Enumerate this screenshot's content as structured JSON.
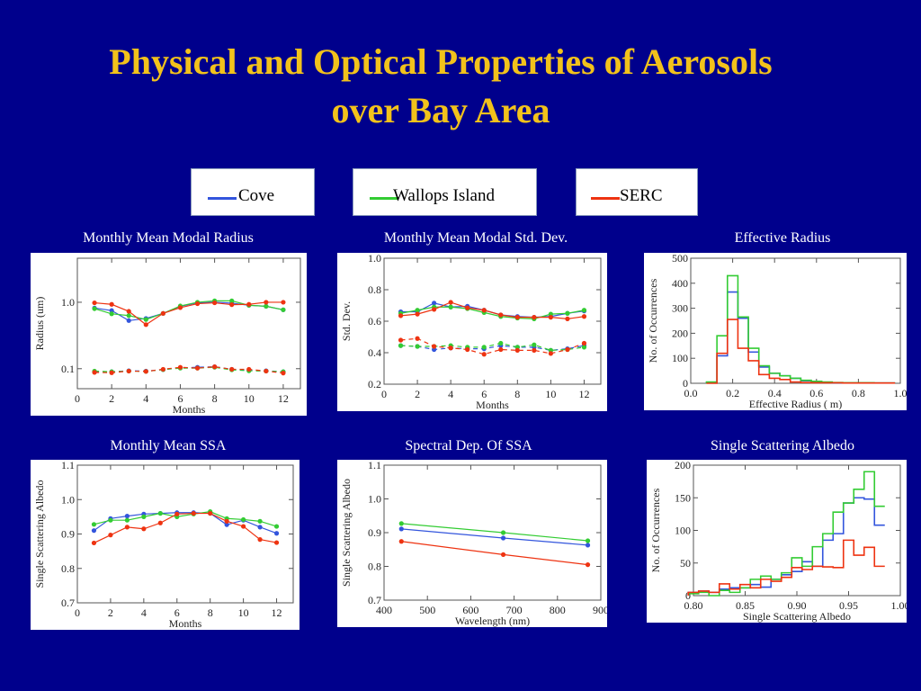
{
  "slide": {
    "title_line1": "Physical and Optical Properties of Aerosols",
    "title_line2": "over Bay Area"
  },
  "legend": [
    {
      "label": "Cove",
      "color": "#3355dd"
    },
    {
      "label": "Wallops Island",
      "color": "#33cc33"
    },
    {
      "label": "SERC",
      "color": "#ee3311"
    }
  ],
  "chart_data": [
    {
      "title": "Monthly Mean Modal Radius",
      "type": "line",
      "xlabel": "Months",
      "ylabel": "Radius (um)",
      "xlim": [
        0,
        13
      ],
      "ylim": [
        0.05,
        4.6
      ],
      "yscale": "log",
      "xticks": [
        0,
        2,
        4,
        6,
        8,
        10,
        12
      ],
      "xtick_labels": [
        "0",
        "2",
        "4",
        "6",
        "8",
        "10",
        "12"
      ],
      "yticks": [
        0.1,
        1.0
      ],
      "ytick_labels": [
        "0.1",
        "1.0"
      ],
      "x": [
        1,
        2,
        3,
        4,
        5,
        6,
        7,
        8,
        9,
        10,
        11,
        12
      ],
      "series": [
        {
          "name": "Cove",
          "style": "solid",
          "values": [
            0.82,
            0.75,
            0.53,
            0.57,
            0.68,
            0.87,
            0.98,
            1.0,
            0.97,
            0.9,
            0.87,
            0.77
          ]
        },
        {
          "name": "Wallops Island",
          "style": "solid",
          "values": [
            0.8,
            0.67,
            0.63,
            0.55,
            0.68,
            0.88,
            1.0,
            1.05,
            1.05,
            0.9,
            0.87,
            0.77
          ]
        },
        {
          "name": "SERC",
          "style": "solid",
          "values": [
            0.98,
            0.93,
            0.73,
            0.46,
            0.68,
            0.83,
            0.95,
            0.98,
            0.92,
            0.93,
            1.0,
            1.0
          ]
        },
        {
          "name": "Cove",
          "style": "dashed",
          "values": [
            0.09,
            0.09,
            0.093,
            0.092,
            0.097,
            0.103,
            0.105,
            0.107,
            0.098,
            0.095,
            0.093,
            0.09
          ]
        },
        {
          "name": "Wallops Island",
          "style": "dashed",
          "values": [
            0.092,
            0.09,
            0.092,
            0.091,
            0.097,
            0.102,
            0.102,
            0.105,
            0.096,
            0.093,
            0.092,
            0.09
          ]
        },
        {
          "name": "SERC",
          "style": "dashed",
          "values": [
            0.088,
            0.087,
            0.092,
            0.091,
            0.098,
            0.105,
            0.102,
            0.107,
            0.098,
            0.098,
            0.092,
            0.086
          ]
        }
      ]
    },
    {
      "title": "Monthly Mean Modal Std. Dev.",
      "type": "line",
      "xlabel": "Months",
      "ylabel": "Std. Dev.",
      "xlim": [
        0,
        13
      ],
      "ylim": [
        0.2,
        1.0
      ],
      "yscale": "linear",
      "xticks": [
        0,
        2,
        4,
        6,
        8,
        10,
        12
      ],
      "xtick_labels": [
        "0",
        "2",
        "4",
        "6",
        "8",
        "10",
        "12"
      ],
      "yticks": [
        0.2,
        0.4,
        0.6,
        0.8,
        1.0
      ],
      "ytick_labels": [
        "0.2",
        "0.4",
        "0.6",
        "0.8",
        "1.0"
      ],
      "x": [
        1,
        2,
        3,
        4,
        5,
        6,
        7,
        8,
        9,
        10,
        11,
        12
      ],
      "series": [
        {
          "name": "Cove",
          "style": "solid",
          "values": [
            0.66,
            0.66,
            0.715,
            0.69,
            0.695,
            0.67,
            0.64,
            0.63,
            0.625,
            0.63,
            0.65,
            0.665
          ]
        },
        {
          "name": "Wallops Island",
          "style": "solid",
          "values": [
            0.65,
            0.67,
            0.69,
            0.69,
            0.68,
            0.655,
            0.63,
            0.62,
            0.615,
            0.645,
            0.65,
            0.67
          ]
        },
        {
          "name": "SERC",
          "style": "solid",
          "values": [
            0.635,
            0.645,
            0.675,
            0.72,
            0.685,
            0.67,
            0.64,
            0.625,
            0.625,
            0.625,
            0.615,
            0.63
          ]
        },
        {
          "name": "Cove",
          "style": "dashed",
          "values": [
            0.445,
            0.44,
            0.42,
            0.43,
            0.425,
            0.425,
            0.445,
            0.435,
            0.435,
            0.415,
            0.425,
            0.445
          ]
        },
        {
          "name": "Wallops Island",
          "style": "dashed",
          "values": [
            0.445,
            0.44,
            0.44,
            0.445,
            0.435,
            0.435,
            0.46,
            0.435,
            0.45,
            0.415,
            0.42,
            0.435
          ]
        },
        {
          "name": "SERC",
          "style": "dashed",
          "values": [
            0.48,
            0.49,
            0.44,
            0.43,
            0.42,
            0.39,
            0.42,
            0.415,
            0.415,
            0.395,
            0.42,
            0.46
          ]
        }
      ]
    },
    {
      "title": "Effective Radius",
      "type": "histogram",
      "xlabel": "Effective Radius (  m)",
      "ylabel": "No. of Occurrences",
      "xlim": [
        0,
        1.0
      ],
      "ylim": [
        0,
        500
      ],
      "yscale": "linear",
      "xticks": [
        0,
        0.2,
        0.4,
        0.6,
        0.8,
        1.0
      ],
      "xtick_labels": [
        "0.0",
        "0.2",
        "0.4",
        "0.6",
        "0.8",
        "1.0"
      ],
      "yticks": [
        0,
        100,
        200,
        300,
        400,
        500
      ],
      "ytick_labels": [
        "0",
        "100",
        "200",
        "300",
        "400",
        "500"
      ],
      "bin_start": 0.075,
      "bin_width": 0.05,
      "series": [
        {
          "name": "Cove",
          "values": [
            3,
            110,
            365,
            260,
            125,
            65,
            40,
            30,
            20,
            10,
            5,
            3,
            2,
            1,
            1,
            1,
            1,
            1
          ]
        },
        {
          "name": "Wallops Island",
          "values": [
            5,
            190,
            430,
            265,
            140,
            70,
            40,
            30,
            20,
            12,
            8,
            5,
            3,
            2,
            2,
            2,
            1,
            1
          ]
        },
        {
          "name": "SERC",
          "values": [
            0,
            120,
            255,
            140,
            90,
            35,
            20,
            15,
            5,
            3,
            2,
            2,
            2,
            1,
            1,
            1,
            1,
            1
          ]
        }
      ]
    },
    {
      "title": "Monthly Mean SSA",
      "type": "line",
      "xlabel": "Months",
      "ylabel": "Single Scattering Albedo",
      "xlim": [
        0,
        13
      ],
      "ylim": [
        0.7,
        1.1
      ],
      "yscale": "linear",
      "xticks": [
        0,
        2,
        4,
        6,
        8,
        10,
        12
      ],
      "xtick_labels": [
        "0",
        "2",
        "4",
        "6",
        "8",
        "10",
        "12"
      ],
      "yticks": [
        0.7,
        0.8,
        0.9,
        1.0,
        1.1
      ],
      "ytick_labels": [
        "0.7",
        "0.8",
        "0.9",
        "1.0",
        "1.1"
      ],
      "x": [
        1,
        2,
        3,
        4,
        5,
        6,
        7,
        8,
        9,
        10,
        11,
        12
      ],
      "series": [
        {
          "name": "Cove",
          "style": "solid",
          "values": [
            0.91,
            0.945,
            0.952,
            0.958,
            0.96,
            0.962,
            0.962,
            0.96,
            0.927,
            0.94,
            0.92,
            0.902
          ]
        },
        {
          "name": "Wallops Island",
          "style": "solid",
          "values": [
            0.928,
            0.94,
            0.94,
            0.95,
            0.96,
            0.95,
            0.958,
            0.965,
            0.945,
            0.942,
            0.937,
            0.922
          ]
        },
        {
          "name": "SERC",
          "style": "solid",
          "values": [
            0.874,
            0.897,
            0.92,
            0.915,
            0.932,
            0.958,
            0.96,
            0.96,
            0.937,
            0.922,
            0.884,
            0.875
          ]
        }
      ]
    },
    {
      "title": "Spectral Dep. Of  SSA",
      "type": "line",
      "xlabel": "Wavelength (nm)",
      "ylabel": "Single Scattering Albedo",
      "xlim": [
        400,
        900
      ],
      "ylim": [
        0.7,
        1.1
      ],
      "yscale": "linear",
      "xticks": [
        400,
        500,
        600,
        700,
        800,
        900
      ],
      "xtick_labels": [
        "400",
        "500",
        "600",
        "700",
        "800",
        "900"
      ],
      "yticks": [
        0.7,
        0.8,
        0.9,
        1.0,
        1.1
      ],
      "ytick_labels": [
        "0.7",
        "0.8",
        "0.9",
        "1.0",
        "1.1"
      ],
      "x": [
        440,
        675,
        870
      ],
      "series": [
        {
          "name": "Cove",
          "style": "solid",
          "values": [
            0.911,
            0.884,
            0.863
          ]
        },
        {
          "name": "Wallops Island",
          "style": "solid",
          "values": [
            0.927,
            0.9,
            0.876
          ]
        },
        {
          "name": "SERC",
          "style": "solid",
          "values": [
            0.874,
            0.835,
            0.805
          ]
        }
      ]
    },
    {
      "title": "Single Scattering Albedo",
      "type": "histogram",
      "xlabel": "Single Scattering Albedo",
      "ylabel": "No. of Occurrences",
      "xlim": [
        0.8,
        1.0
      ],
      "ylim": [
        0,
        200
      ],
      "yscale": "linear",
      "xticks": [
        0.8,
        0.85,
        0.9,
        0.95,
        1.0
      ],
      "xtick_labels": [
        "0.80",
        "0.85",
        "0.90",
        "0.95",
        "1.00"
      ],
      "yticks": [
        0,
        50,
        100,
        150,
        200
      ],
      "ytick_labels": [
        "0",
        "50",
        "100",
        "150",
        "200"
      ],
      "bin_start": 0.795,
      "bin_width": 0.01,
      "series": [
        {
          "name": "Cove",
          "values": [
            5,
            7,
            5,
            10,
            12,
            12,
            17,
            13,
            25,
            32,
            37,
            52,
            45,
            85,
            95,
            142,
            150,
            148,
            108
          ]
        },
        {
          "name": "Wallops Island",
          "values": [
            3,
            5,
            0,
            8,
            5,
            12,
            25,
            30,
            25,
            35,
            58,
            45,
            75,
            95,
            128,
            142,
            163,
            190,
            137
          ]
        },
        {
          "name": "SERC",
          "values": [
            5,
            7,
            5,
            18,
            10,
            17,
            12,
            25,
            22,
            28,
            43,
            40,
            45,
            44,
            43,
            85,
            62,
            74,
            45
          ]
        }
      ]
    }
  ]
}
